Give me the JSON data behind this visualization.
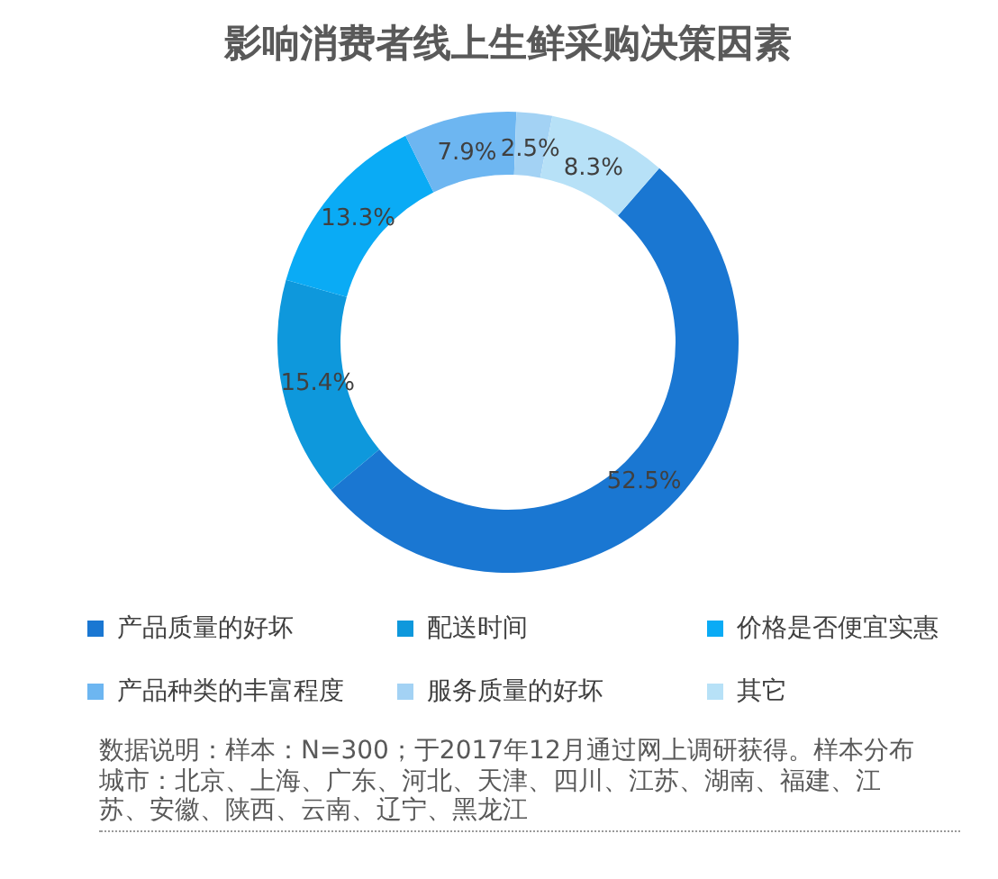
{
  "chart_data": {
    "type": "donut",
    "title": "影响消费者线上生鲜采购决策因素",
    "categories": [
      "产品质量的好坏",
      "配送时间",
      "价格是否便宜实惠",
      "产品种类的丰富程度",
      "服务质量的好坏",
      "其它"
    ],
    "values": [
      52.5,
      15.4,
      13.3,
      7.9,
      2.5,
      8.3
    ],
    "value_labels": [
      "52.5%",
      "15.4%",
      "13.3%",
      "7.9%",
      "2.5%",
      "8.3%"
    ],
    "colors": [
      "#1a77d2",
      "#0e98dc",
      "#0aabf5",
      "#6db6f1",
      "#a3d2f4",
      "#b7e1f7"
    ],
    "legend": "bottom",
    "annotations": [
      "数据说明：样本：N=300；于2017年12月通过网上调研获得。样本分布城市：北京、上海、广东、河北、天津、四川、江苏、湖南、福建、江苏、安徽、陕西、云南、辽宁、黑龙江"
    ]
  }
}
